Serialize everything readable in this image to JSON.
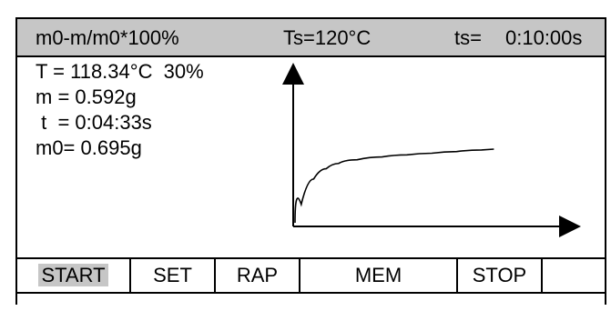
{
  "header": {
    "formula": "m0-m/m0*100%",
    "set_temp": "Ts=120°C",
    "set_time_label": "ts=",
    "set_time_value": "0:10:00s"
  },
  "readouts": {
    "temperature": "T = 118.34°C  30%",
    "mass": "m = 0.592g",
    "time": " t  = 0:04:33s",
    "initial_mass": "m0= 0.695g"
  },
  "chart_data": {
    "type": "line",
    "title": "",
    "xlabel": "",
    "ylabel": "",
    "series": [
      {
        "values": [
          0.0,
          0.45,
          0.62,
          0.7,
          0.75,
          0.79,
          0.82,
          0.84,
          0.86,
          0.88,
          0.9
        ]
      }
    ],
    "x": [
      0,
      0.05,
      0.1,
      0.15,
      0.2,
      0.3,
      0.4,
      0.5,
      0.6,
      0.7,
      0.8
    ],
    "grid": false
  },
  "softkeys": [
    {
      "label": "START",
      "active": true
    },
    {
      "label": "SET",
      "active": false
    },
    {
      "label": "RAP",
      "active": false
    },
    {
      "label": "MEM",
      "active": false
    },
    {
      "label": "STOP",
      "active": false
    },
    {
      "label": "",
      "active": false
    }
  ],
  "colors": {
    "highlight": "#c6c6c6",
    "line": "#000000"
  }
}
